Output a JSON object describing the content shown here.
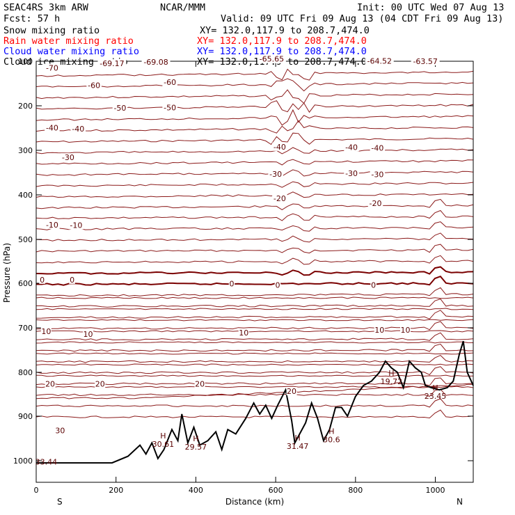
{
  "header": {
    "model": "SEAC4RS  3km ARW",
    "center": "NCAR/MMM",
    "init": "Init: 00 UTC Wed 07 Aug 13",
    "fcst": "Fcst:    57 h",
    "valid": "Valid: 09 UTC Fri 09 Aug 13 (04 CDT Fri 09 Aug 13)",
    "fields": [
      {
        "label": "Snow mixing ratio",
        "color": "#000000",
        "xy": "XY= 132.0,117.9 to 208.7,474.0"
      },
      {
        "label": "Rain water mixing ratio",
        "color": "#ff0000",
        "xy": "XY= 132.0,117.9 to 208.7,474.0"
      },
      {
        "label": "Cloud water mixing ratio",
        "color": "#0000ff",
        "xy": "XY= 132.0,117.9 to 208.7,474.0"
      },
      {
        "label": "Cloud ice mixing ratio",
        "color": "#000000",
        "xy": "XY= 132.0,117.9 to 208.7,474.0"
      }
    ]
  },
  "chart_data": {
    "type": "line",
    "xlabel": "Distance (km)",
    "ylabel": "Pressure (hPa)",
    "xlim": [
      0,
      1095
    ],
    "ylim": [
      1050,
      100
    ],
    "x_ticks": [
      0,
      200,
      400,
      600,
      800,
      1000
    ],
    "y_ticks": [
      100,
      200,
      300,
      400,
      500,
      600,
      700,
      800,
      900,
      1000
    ],
    "left_endpoint_label": "S",
    "right_endpoint_label": "N",
    "contour_color": "#8b1a1a",
    "terrain_color": "#000000",
    "isotherm_labels": [
      {
        "text": "-69.17",
        "x": 190,
        "p": 108
      },
      {
        "text": "-69.08",
        "x": 300,
        "p": 105
      },
      {
        "text": "-65.65",
        "x": 590,
        "p": 98
      },
      {
        "text": "-64.52",
        "x": 860,
        "p": 102
      },
      {
        "text": "-63.57",
        "x": 975,
        "p": 103
      },
      {
        "text": "-70",
        "x": 40,
        "p": 118
      },
      {
        "text": "-60",
        "x": 145,
        "p": 157
      },
      {
        "text": "-60",
        "x": 335,
        "p": 150
      },
      {
        "text": "-50",
        "x": 210,
        "p": 208
      },
      {
        "text": "-50",
        "x": 335,
        "p": 207
      },
      {
        "text": "-40",
        "x": 40,
        "p": 252
      },
      {
        "text": "-40",
        "x": 105,
        "p": 255
      },
      {
        "text": "-40",
        "x": 610,
        "p": 295
      },
      {
        "text": "-40",
        "x": 790,
        "p": 296
      },
      {
        "text": "-40",
        "x": 855,
        "p": 298
      },
      {
        "text": "-30",
        "x": 80,
        "p": 319
      },
      {
        "text": "-30",
        "x": 600,
        "p": 356
      },
      {
        "text": "-30",
        "x": 790,
        "p": 355
      },
      {
        "text": "-30",
        "x": 855,
        "p": 357
      },
      {
        "text": "-20",
        "x": 610,
        "p": 411
      },
      {
        "text": "-20",
        "x": 850,
        "p": 422
      },
      {
        "text": "-10",
        "x": 40,
        "p": 470
      },
      {
        "text": "-10",
        "x": 100,
        "p": 471
      },
      {
        "text": "0",
        "x": 15,
        "p": 595
      },
      {
        "text": "0",
        "x": 90,
        "p": 595
      },
      {
        "text": "0",
        "x": 490,
        "p": 604
      },
      {
        "text": "0",
        "x": 605,
        "p": 607
      },
      {
        "text": "0",
        "x": 845,
        "p": 607
      },
      {
        "text": "10",
        "x": 25,
        "p": 711
      },
      {
        "text": "10",
        "x": 130,
        "p": 717
      },
      {
        "text": "10",
        "x": 520,
        "p": 714
      },
      {
        "text": "10",
        "x": 860,
        "p": 708
      },
      {
        "text": "10",
        "x": 925,
        "p": 708
      },
      {
        "text": "20",
        "x": 35,
        "p": 829
      },
      {
        "text": "20",
        "x": 160,
        "p": 829
      },
      {
        "text": "20",
        "x": 410,
        "p": 829
      },
      {
        "text": "20",
        "x": 640,
        "p": 846
      },
      {
        "text": "30",
        "x": 60,
        "p": 935
      }
    ],
    "highs": [
      {
        "label": "H",
        "value": "30.61",
        "x": 318,
        "p": 950
      },
      {
        "label": "H",
        "value": "29.57",
        "x": 400,
        "p": 956
      },
      {
        "label": "H",
        "value": "31.47",
        "x": 655,
        "p": 955
      },
      {
        "label": "H",
        "value": "30.6",
        "x": 740,
        "p": 940
      },
      {
        "label": "H",
        "value": "19.72",
        "x": 890,
        "p": 808
      },
      {
        "label": "H",
        "value": "23.45",
        "x": 1000,
        "p": 841
      },
      {
        "label": "",
        "value": "33.44",
        "x": 25,
        "p": 990
      }
    ]
  }
}
